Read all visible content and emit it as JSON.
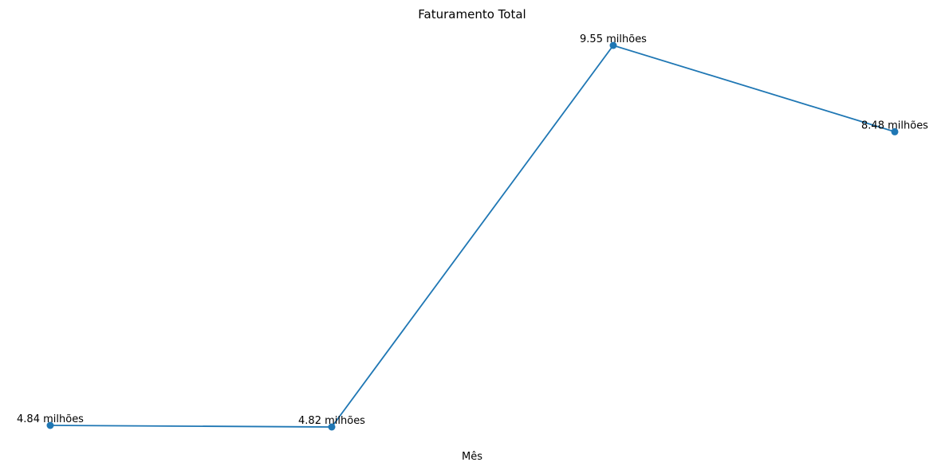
{
  "chart_data": {
    "type": "line",
    "title": "Faturamento Total",
    "xlabel": "Mês",
    "ylabel": "",
    "x": [
      "",
      "",
      "",
      ""
    ],
    "series": [
      {
        "values": [
          4.84,
          4.82,
          9.55,
          8.48
        ],
        "labels": [
          "4.84 milhões",
          "4.82 milhões",
          "9.55 milhões",
          "8.48 milhões"
        ],
        "color": "#1f77b4"
      }
    ],
    "grid": false,
    "axes_visible": false
  }
}
